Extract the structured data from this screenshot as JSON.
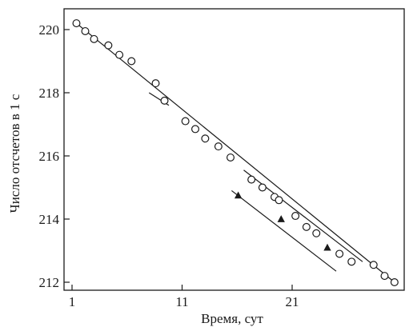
{
  "chart_data": {
    "type": "scatter",
    "xlabel": "Время, сут",
    "ylabel": "Число отсчетов в 1 с",
    "xlim": [
      1,
      30
    ],
    "ylim": [
      211.7,
      220.8
    ],
    "x_ticks": [
      1,
      11,
      21
    ],
    "y_ticks": [
      212,
      214,
      216,
      218,
      220
    ],
    "grid": false,
    "legend": "none",
    "series": [
      {
        "marker": "circle",
        "x": [
          1.4,
          2.2,
          3.0,
          4.3,
          5.3,
          6.4,
          8.6,
          9.4,
          11.3,
          12.2,
          13.1,
          14.3,
          15.4,
          17.3,
          18.3,
          19.4,
          19.8,
          21.3,
          22.3,
          23.2,
          25.3,
          26.4,
          28.4,
          29.4,
          30.3
        ],
        "y": [
          220.2,
          219.95,
          219.7,
          219.5,
          219.2,
          219.0,
          218.3,
          217.75,
          217.1,
          216.85,
          216.55,
          216.3,
          215.95,
          215.25,
          215.0,
          214.7,
          214.6,
          214.1,
          213.75,
          213.55,
          212.9,
          212.65,
          212.55,
          212.2,
          212.0
        ]
      },
      {
        "marker": "triangle",
        "x": [
          16.1,
          20.0,
          24.2
        ],
        "y": [
          214.75,
          214.0,
          213.1
        ]
      }
    ],
    "fit_lines": [
      {
        "x": [
          1.4,
          30.3
        ],
        "y": [
          220.2,
          212.0
        ]
      },
      {
        "x": [
          8.0,
          9.8
        ],
        "y": [
          218.0,
          217.6
        ]
      },
      {
        "x": [
          16.6,
          27.4
        ],
        "y": [
          215.55,
          212.65
        ]
      },
      {
        "x": [
          15.5,
          25.0
        ],
        "y": [
          214.9,
          212.35
        ]
      }
    ],
    "colors": {
      "ink": "#1a1a1a",
      "background": "#ffffff"
    }
  }
}
